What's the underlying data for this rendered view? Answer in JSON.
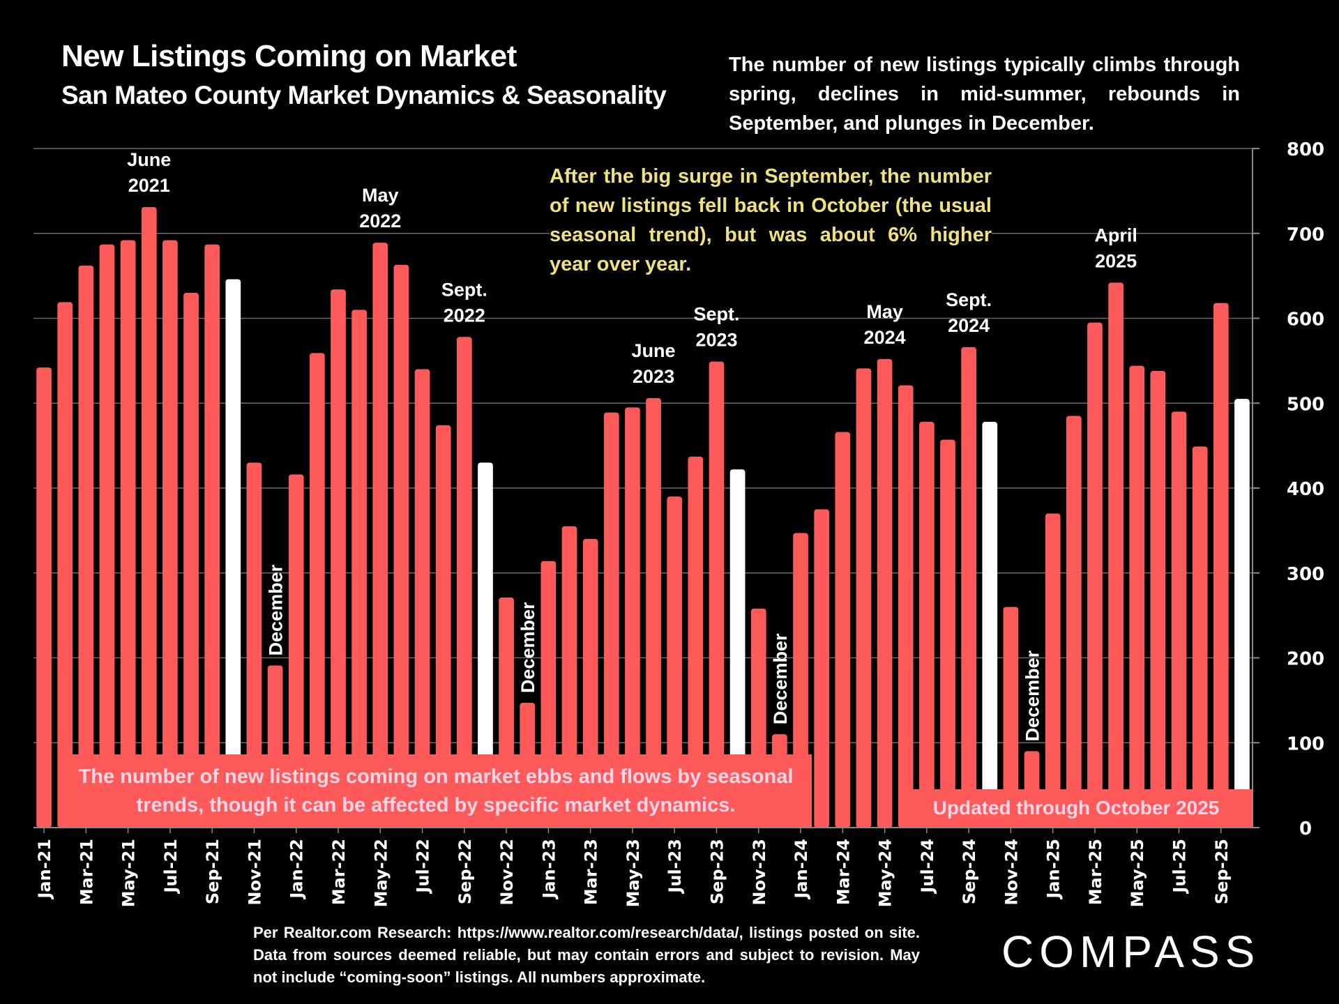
{
  "header": {
    "title": "New Listings Coming on Market",
    "subtitle": "San Mateo County Market Dynamics & Seasonality"
  },
  "intro_text": "The number of new listings typically climbs through spring, declines in mid-summer, rebounds in September, and plunges in December.",
  "callout_text": "After the big surge in September, the number of new listings fell back in October (the usual seasonal trend), but was about 6% higher year over year.",
  "bottom_left_note": "The number of new listings coming on market ebbs and flows by seasonal trends, though it can be affected by specific market dynamics.",
  "bottom_right_note": "Updated through October 2025",
  "footer_text": "Per Realtor.com Research:  https://www.realtor.com/research/data/, listings posted on site. Data from sources deemed reliable, but may contain errors and subject to revision. May not include “coming-soon” listings. All numbers approximate.",
  "logo_text": "COMPASS",
  "colors": {
    "bar": "#FF5A5A",
    "bar_highlight": "#FFFFFF",
    "callout": "#F0E27A",
    "background": "#000000"
  },
  "chart_data": {
    "type": "bar",
    "title": "New Listings Coming on Market",
    "xlabel": "",
    "ylabel": "",
    "ylim": [
      0,
      800
    ],
    "yticks": [
      0,
      100,
      200,
      300,
      400,
      500,
      600,
      700,
      800
    ],
    "y_axis_side": "right",
    "grid": true,
    "categories": [
      "Jan-21",
      "Feb-21",
      "Mar-21",
      "Apr-21",
      "May-21",
      "Jun-21",
      "Jul-21",
      "Aug-21",
      "Sep-21",
      "Oct-21",
      "Nov-21",
      "Dec-21",
      "Jan-22",
      "Feb-22",
      "Mar-22",
      "Apr-22",
      "May-22",
      "Jun-22",
      "Jul-22",
      "Aug-22",
      "Sep-22",
      "Oct-22",
      "Nov-22",
      "Dec-22",
      "Jan-23",
      "Feb-23",
      "Mar-23",
      "Apr-23",
      "May-23",
      "Jun-23",
      "Jul-23",
      "Aug-23",
      "Sep-23",
      "Oct-23",
      "Nov-23",
      "Dec-23",
      "Jan-24",
      "Feb-24",
      "Mar-24",
      "Apr-24",
      "May-24",
      "Jun-24",
      "Jul-24",
      "Aug-24",
      "Sep-24",
      "Oct-24",
      "Nov-24",
      "Dec-24",
      "Jan-25",
      "Feb-25",
      "Mar-25",
      "Apr-25",
      "May-25",
      "Jun-25",
      "Jul-25",
      "Aug-25",
      "Sep-25",
      "Oct-25"
    ],
    "tick_labels": [
      "Jan-21",
      "Mar-21",
      "May-21",
      "Jul-21",
      "Sep-21",
      "Nov-21",
      "Jan-22",
      "Mar-22",
      "May-22",
      "Jul-22",
      "Sep-22",
      "Nov-22",
      "Jan-23",
      "Mar-23",
      "May-23",
      "Jul-23",
      "Sep-23",
      "Nov-23",
      "Jan-24",
      "Mar-24",
      "May-24",
      "Jul-24",
      "Sep-24",
      "Nov-24",
      "Jan-25",
      "Mar-25",
      "May-25",
      "Jul-25",
      "Sep-25"
    ],
    "values": [
      542,
      619,
      662,
      687,
      692,
      731,
      692,
      630,
      687,
      646,
      430,
      191,
      416,
      559,
      634,
      610,
      689,
      663,
      540,
      474,
      578,
      430,
      271,
      147,
      314,
      355,
      340,
      489,
      495,
      506,
      390,
      437,
      549,
      422,
      258,
      110,
      347,
      375,
      466,
      541,
      552,
      521,
      478,
      457,
      566,
      478,
      260,
      90,
      370,
      485,
      595,
      642,
      544,
      538,
      490,
      449,
      618,
      505
    ],
    "highlighted_categories": [
      "Oct-21",
      "Oct-22",
      "Oct-23",
      "Oct-24",
      "Oct-25"
    ],
    "annotations": [
      {
        "category": "Jun-21",
        "lines": [
          "June",
          "2021"
        ],
        "orientation": "horizontal"
      },
      {
        "category": "Dec-21",
        "lines": [
          "December"
        ],
        "orientation": "vertical"
      },
      {
        "category": "May-22",
        "lines": [
          "May",
          "2022"
        ],
        "orientation": "horizontal"
      },
      {
        "category": "Sep-22",
        "lines": [
          "Sept.",
          "2022"
        ],
        "orientation": "horizontal"
      },
      {
        "category": "Dec-22",
        "lines": [
          "December"
        ],
        "orientation": "vertical"
      },
      {
        "category": "Jun-23",
        "lines": [
          "June",
          "2023"
        ],
        "orientation": "horizontal"
      },
      {
        "category": "Sep-23",
        "lines": [
          "Sept.",
          "2023"
        ],
        "orientation": "horizontal"
      },
      {
        "category": "Dec-23",
        "lines": [
          "December"
        ],
        "orientation": "vertical"
      },
      {
        "category": "May-24",
        "lines": [
          "May",
          "2024"
        ],
        "orientation": "horizontal"
      },
      {
        "category": "Sep-24",
        "lines": [
          "Sept.",
          "2024"
        ],
        "orientation": "horizontal"
      },
      {
        "category": "Dec-24",
        "lines": [
          "December"
        ],
        "orientation": "vertical"
      },
      {
        "category": "Apr-25",
        "lines": [
          "April",
          "2025"
        ],
        "orientation": "horizontal"
      }
    ]
  }
}
